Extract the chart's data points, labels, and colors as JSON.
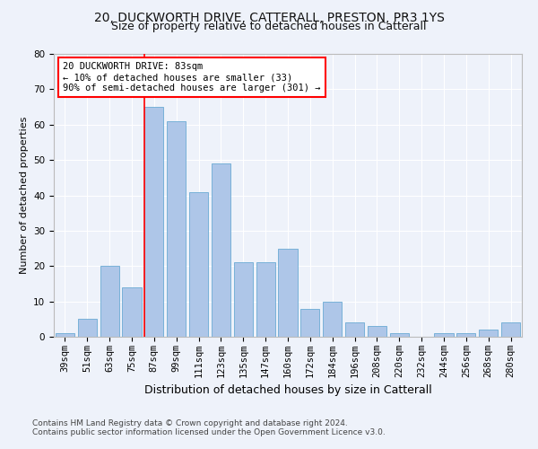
{
  "title1": "20, DUCKWORTH DRIVE, CATTERALL, PRESTON, PR3 1YS",
  "title2": "Size of property relative to detached houses in Catterall",
  "xlabel": "Distribution of detached houses by size in Catterall",
  "ylabel": "Number of detached properties",
  "categories": [
    "39sqm",
    "51sqm",
    "63sqm",
    "75sqm",
    "87sqm",
    "99sqm",
    "111sqm",
    "123sqm",
    "135sqm",
    "147sqm",
    "160sqm",
    "172sqm",
    "184sqm",
    "196sqm",
    "208sqm",
    "220sqm",
    "232sqm",
    "244sqm",
    "256sqm",
    "268sqm",
    "280sqm"
  ],
  "values": [
    1,
    5,
    20,
    14,
    65,
    61,
    41,
    49,
    21,
    21,
    25,
    8,
    10,
    4,
    3,
    1,
    0,
    1,
    1,
    2,
    4
  ],
  "bar_color": "#aec6e8",
  "bar_edge_color": "#6aaad4",
  "annotation_text": "20 DUCKWORTH DRIVE: 83sqm\n← 10% of detached houses are smaller (33)\n90% of semi-detached houses are larger (301) →",
  "annotation_box_color": "white",
  "annotation_box_edge_color": "red",
  "vline_color": "red",
  "vline_x_idx": 4,
  "ylim": [
    0,
    80
  ],
  "yticks": [
    0,
    10,
    20,
    30,
    40,
    50,
    60,
    70,
    80
  ],
  "footnote1": "Contains HM Land Registry data © Crown copyright and database right 2024.",
  "footnote2": "Contains public sector information licensed under the Open Government Licence v3.0.",
  "background_color": "#eef2fa",
  "grid_color": "#ffffff",
  "title1_fontsize": 10,
  "title2_fontsize": 9,
  "xlabel_fontsize": 9,
  "ylabel_fontsize": 8,
  "tick_fontsize": 7.5,
  "annotation_fontsize": 7.5,
  "footnote_fontsize": 6.5
}
